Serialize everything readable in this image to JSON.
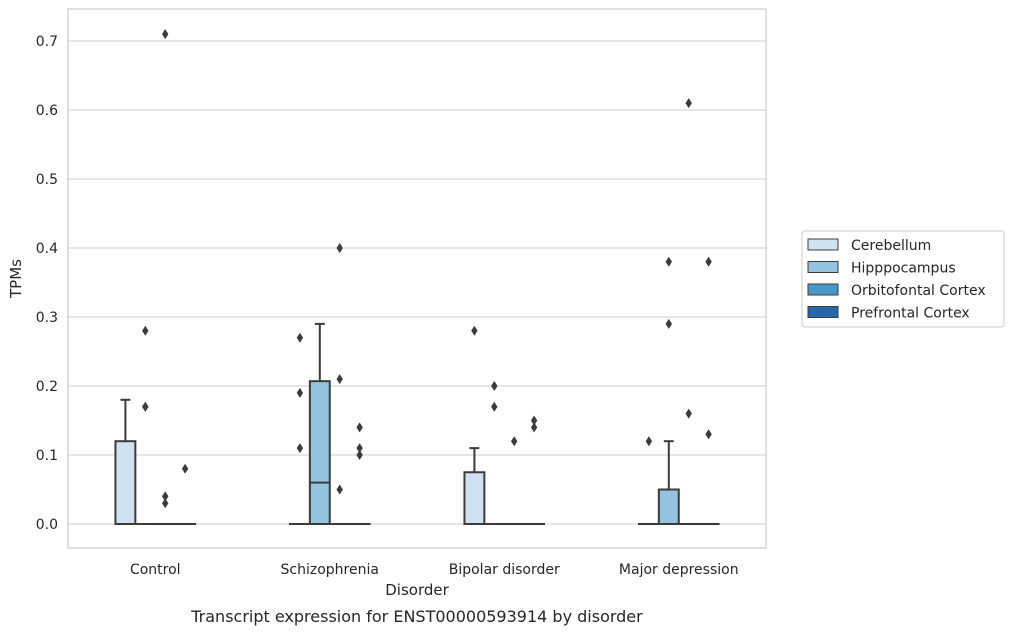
{
  "chart_data": {
    "type": "box",
    "title": "",
    "caption": "Transcript expression for ENST00000593914 by disorder",
    "xlabel": "Disorder",
    "ylabel": "TPMs",
    "ylim": [
      -0.035,
      0.745
    ],
    "yticks": [
      "0.0",
      "0.1",
      "0.2",
      "0.3",
      "0.4",
      "0.5",
      "0.6",
      "0.7"
    ],
    "ytick_values": [
      0.0,
      0.1,
      0.2,
      0.3,
      0.4,
      0.5,
      0.6,
      0.7
    ],
    "grid": "horizontal",
    "legend_position": "right",
    "categories": [
      "Control",
      "Schizophrenia",
      "Bipolar disorder",
      "Major depression"
    ],
    "series": [
      {
        "name": "Cerebellum",
        "color": "#d0e1f2",
        "boxes": [
          {
            "q1": 0.0,
            "median": 0.0,
            "q3": 0.12,
            "whisker_low": 0.0,
            "whisker_high": 0.18,
            "outliers": []
          },
          {
            "q1": 0.0,
            "median": 0.0,
            "q3": 0.0,
            "whisker_low": 0.0,
            "whisker_high": 0.0,
            "outliers": [
              0.27,
              0.19,
              0.11
            ]
          },
          {
            "q1": 0.0,
            "median": 0.0,
            "q3": 0.075,
            "whisker_low": 0.0,
            "whisker_high": 0.11,
            "outliers": [
              0.28
            ]
          },
          {
            "q1": 0.0,
            "median": 0.0,
            "q3": 0.0,
            "whisker_low": 0.0,
            "whisker_high": 0.0,
            "outliers": [
              0.12
            ]
          }
        ]
      },
      {
        "name": "Hipppocampus",
        "color": "#94c4df",
        "boxes": [
          {
            "q1": 0.0,
            "median": 0.0,
            "q3": 0.0,
            "whisker_low": 0.0,
            "whisker_high": 0.0,
            "outliers": [
              0.28,
              0.17,
              0.17
            ]
          },
          {
            "q1": 0.0,
            "median": 0.06,
            "q3": 0.207,
            "whisker_low": 0.0,
            "whisker_high": 0.29,
            "outliers": []
          },
          {
            "q1": 0.0,
            "median": 0.0,
            "q3": 0.0,
            "whisker_low": 0.0,
            "whisker_high": 0.0,
            "outliers": [
              0.2,
              0.17
            ]
          },
          {
            "q1": 0.0,
            "median": 0.0,
            "q3": 0.05,
            "whisker_low": 0.0,
            "whisker_high": 0.12,
            "outliers": [
              0.38,
              0.29
            ]
          }
        ]
      },
      {
        "name": "Orbitofontal Cortex",
        "color": "#4a98c9",
        "boxes": [
          {
            "q1": 0.0,
            "median": 0.0,
            "q3": 0.0,
            "whisker_low": 0.0,
            "whisker_high": 0.0,
            "outliers": [
              0.71,
              0.04,
              0.03
            ]
          },
          {
            "q1": 0.0,
            "median": 0.0,
            "q3": 0.0,
            "whisker_low": 0.0,
            "whisker_high": 0.0,
            "outliers": [
              0.4,
              0.21,
              0.05
            ]
          },
          {
            "q1": 0.0,
            "median": 0.0,
            "q3": 0.0,
            "whisker_low": 0.0,
            "whisker_high": 0.0,
            "outliers": [
              0.12
            ]
          },
          {
            "q1": 0.0,
            "median": 0.0,
            "q3": 0.0,
            "whisker_low": 0.0,
            "whisker_high": 0.0,
            "outliers": [
              0.61,
              0.16
            ]
          }
        ]
      },
      {
        "name": "Prefrontal Cortex",
        "color": "#2666a9",
        "boxes": [
          {
            "q1": 0.0,
            "median": 0.0,
            "q3": 0.0,
            "whisker_low": 0.0,
            "whisker_high": 0.0,
            "outliers": [
              0.08
            ]
          },
          {
            "q1": 0.0,
            "median": 0.0,
            "q3": 0.0,
            "whisker_low": 0.0,
            "whisker_high": 0.0,
            "outliers": [
              0.14,
              0.11,
              0.1
            ]
          },
          {
            "q1": 0.0,
            "median": 0.0,
            "q3": 0.0,
            "whisker_low": 0.0,
            "whisker_high": 0.0,
            "outliers": [
              0.15,
              0.14
            ]
          },
          {
            "q1": 0.0,
            "median": 0.0,
            "q3": 0.0,
            "whisker_low": 0.0,
            "whisker_high": 0.0,
            "outliers": [
              0.38,
              0.13
            ]
          }
        ]
      }
    ]
  }
}
